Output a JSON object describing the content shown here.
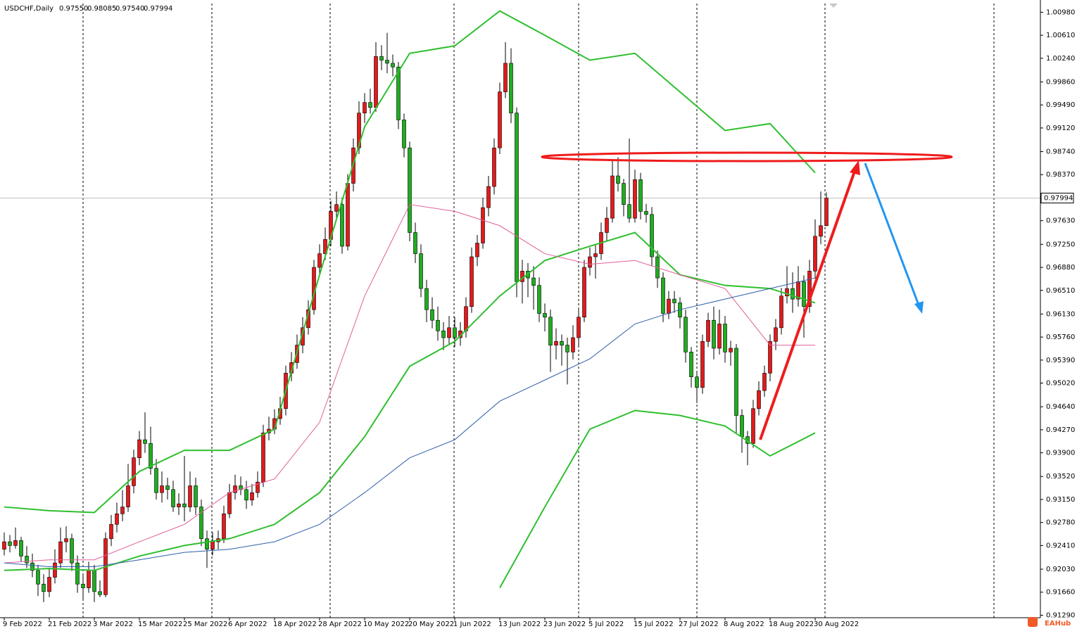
{
  "chart_data": {
    "type": "candlestick",
    "header": {
      "symbol": "USDCHF,Daily",
      "ohlc_text": [
        "0.97550",
        "0.98085",
        "0.97540",
        "0.97994"
      ]
    },
    "watermark": "EAHub",
    "up_color": "#e31a1c",
    "down_color": "#1fae1f",
    "categories": [
      "9 Feb 2022",
      "21 Feb 2022",
      "3 Mar 2022",
      "15 Mar 2022",
      "25 Mar 2022",
      "6 Apr 2022",
      "18 Apr 2022",
      "28 Apr 2022",
      "10 May 2022",
      "20 May 2022",
      "1 Jun 2022",
      "13 Jun 2022",
      "23 Jun 2022",
      "5 Jul 2022",
      "15 Jul 2022",
      "27 Jul 2022",
      "8 Aug 2022",
      "18 Aug 2022",
      "30 Aug 2022"
    ],
    "candles_per_category": 8,
    "ylim": [
      0.9125,
      1.0112
    ],
    "yticks": [
      {
        "value": 1.0098,
        "label": "1.00980"
      },
      {
        "value": 1.0061,
        "label": "1.00610"
      },
      {
        "value": 1.0024,
        "label": "1.00240"
      },
      {
        "value": 0.9986,
        "label": "0.99860"
      },
      {
        "value": 0.9949,
        "label": "0.99490"
      },
      {
        "value": 0.9912,
        "label": "0.99120"
      },
      {
        "value": 0.9874,
        "label": "0.98740"
      },
      {
        "value": 0.9837,
        "label": "0.98370"
      },
      {
        "value": 0.9763,
        "label": "0.97630"
      },
      {
        "value": 0.9725,
        "label": "0.97250"
      },
      {
        "value": 0.9688,
        "label": "0.96880"
      },
      {
        "value": 0.9651,
        "label": "0.96510"
      },
      {
        "value": 0.9613,
        "label": "0.96130"
      },
      {
        "value": 0.9576,
        "label": "0.95760"
      },
      {
        "value": 0.9539,
        "label": "0.95390"
      },
      {
        "value": 0.9502,
        "label": "0.95020"
      },
      {
        "value": 0.9464,
        "label": "0.94640"
      },
      {
        "value": 0.9427,
        "label": "0.94270"
      },
      {
        "value": 0.939,
        "label": "0.93900"
      },
      {
        "value": 0.9352,
        "label": "0.93520"
      },
      {
        "value": 0.9315,
        "label": "0.93150"
      },
      {
        "value": 0.9278,
        "label": "0.92780"
      },
      {
        "value": 0.9241,
        "label": "0.92410"
      },
      {
        "value": 0.9203,
        "label": "0.92030"
      },
      {
        "value": 0.9166,
        "label": "0.91660"
      },
      {
        "value": 0.9129,
        "label": "0.91290"
      }
    ],
    "current_price": {
      "value": 0.97994,
      "label": "0.97994"
    },
    "ohlc": [
      [
        0.9235,
        0.9262,
        0.9225,
        0.9247
      ],
      [
        0.9247,
        0.9258,
        0.923,
        0.9241
      ],
      [
        0.9241,
        0.927,
        0.9236,
        0.9249
      ],
      [
        0.9249,
        0.9255,
        0.9215,
        0.9224
      ],
      [
        0.9224,
        0.924,
        0.9205,
        0.9213
      ],
      [
        0.9213,
        0.9228,
        0.919,
        0.9201
      ],
      [
        0.9201,
        0.921,
        0.916,
        0.9179
      ],
      [
        0.9179,
        0.9195,
        0.915,
        0.9167
      ],
      [
        0.9167,
        0.9205,
        0.9158,
        0.919
      ],
      [
        0.919,
        0.9235,
        0.918,
        0.9213
      ],
      [
        0.9213,
        0.927,
        0.9205,
        0.9247
      ],
      [
        0.9247,
        0.9272,
        0.923,
        0.9252
      ],
      [
        0.9252,
        0.926,
        0.92,
        0.9213
      ],
      [
        0.9213,
        0.9225,
        0.9165,
        0.9179
      ],
      [
        0.9179,
        0.9195,
        0.9155,
        0.9173
      ],
      [
        0.9173,
        0.9215,
        0.9165,
        0.9201
      ],
      [
        0.9201,
        0.921,
        0.915,
        0.9167
      ],
      [
        0.9167,
        0.9185,
        0.9158,
        0.9162
      ],
      [
        0.9162,
        0.9262,
        0.9158,
        0.9252
      ],
      [
        0.9252,
        0.929,
        0.924,
        0.9275
      ],
      [
        0.9275,
        0.931,
        0.9262,
        0.9292
      ],
      [
        0.9292,
        0.933,
        0.928,
        0.9303
      ],
      [
        0.9303,
        0.9372,
        0.9295,
        0.9337
      ],
      [
        0.9337,
        0.9395,
        0.9325,
        0.9382
      ],
      [
        0.9382,
        0.9425,
        0.937,
        0.9411
      ],
      [
        0.9411,
        0.9455,
        0.939,
        0.9405
      ],
      [
        0.9405,
        0.9432,
        0.9355,
        0.9365
      ],
      [
        0.9365,
        0.938,
        0.9315,
        0.9326
      ],
      [
        0.9326,
        0.936,
        0.931,
        0.9337
      ],
      [
        0.9337,
        0.935,
        0.9315,
        0.9331
      ],
      [
        0.9331,
        0.9345,
        0.9295,
        0.9303
      ],
      [
        0.9303,
        0.9325,
        0.929,
        0.9308
      ],
      [
        0.9308,
        0.9385,
        0.928,
        0.9303
      ],
      [
        0.9303,
        0.936,
        0.9295,
        0.9337
      ],
      [
        0.9337,
        0.935,
        0.929,
        0.9303
      ],
      [
        0.9303,
        0.9315,
        0.924,
        0.9252
      ],
      [
        0.9252,
        0.9265,
        0.9205,
        0.9235
      ],
      [
        0.9235,
        0.9262,
        0.9225,
        0.9247
      ],
      [
        0.9247,
        0.9265,
        0.9235,
        0.9252
      ],
      [
        0.9252,
        0.9305,
        0.9245,
        0.9292
      ],
      [
        0.9292,
        0.934,
        0.9285,
        0.9326
      ],
      [
        0.9326,
        0.9355,
        0.9315,
        0.9337
      ],
      [
        0.9337,
        0.9352,
        0.9322,
        0.9331
      ],
      [
        0.9331,
        0.9345,
        0.93,
        0.9314
      ],
      [
        0.9314,
        0.934,
        0.9305,
        0.9326
      ],
      [
        0.9326,
        0.936,
        0.9318,
        0.9343
      ],
      [
        0.9343,
        0.9435,
        0.9335,
        0.9422
      ],
      [
        0.9422,
        0.9448,
        0.941,
        0.9428
      ],
      [
        0.9428,
        0.946,
        0.942,
        0.9445
      ],
      [
        0.9445,
        0.948,
        0.9435,
        0.9461
      ],
      [
        0.9461,
        0.953,
        0.945,
        0.9518
      ],
      [
        0.9518,
        0.9552,
        0.9505,
        0.9535
      ],
      [
        0.9535,
        0.958,
        0.9525,
        0.9563
      ],
      [
        0.9563,
        0.9608,
        0.955,
        0.9591
      ],
      [
        0.9591,
        0.9635,
        0.958,
        0.962
      ],
      [
        0.962,
        0.97,
        0.9612,
        0.9688
      ],
      [
        0.9688,
        0.9725,
        0.9678,
        0.971
      ],
      [
        0.971,
        0.9752,
        0.97,
        0.9733
      ],
      [
        0.9733,
        0.9795,
        0.9722,
        0.9778
      ],
      [
        0.9778,
        0.981,
        0.9765,
        0.9789
      ],
      [
        0.9789,
        0.98,
        0.971,
        0.9722
      ],
      [
        0.9722,
        0.9838,
        0.9715,
        0.9823
      ],
      [
        0.9823,
        0.9895,
        0.981,
        0.988
      ],
      [
        0.988,
        0.9955,
        0.987,
        0.9936
      ],
      [
        0.9936,
        0.9968,
        0.992,
        0.9953
      ],
      [
        0.9953,
        0.9975,
        0.9935,
        0.9945
      ],
      [
        0.9945,
        1.005,
        0.9938,
        1.0027
      ],
      [
        1.0027,
        1.0045,
        1.0005,
        1.0021
      ],
      [
        1.0021,
        1.0065,
        1.0,
        1.0016
      ],
      [
        1.0016,
        1.003,
        0.9995,
        1.001
      ],
      [
        1.001,
        1.0018,
        0.991,
        0.9925
      ],
      [
        0.9925,
        0.9935,
        0.9865,
        0.988
      ],
      [
        0.988,
        0.989,
        0.973,
        0.9744
      ],
      [
        0.9744,
        0.976,
        0.9695,
        0.971
      ],
      [
        0.971,
        0.9725,
        0.964,
        0.9654
      ],
      [
        0.9654,
        0.9668,
        0.96,
        0.962
      ],
      [
        0.962,
        0.964,
        0.959,
        0.9603
      ],
      [
        0.9603,
        0.9625,
        0.957,
        0.9586
      ],
      [
        0.9586,
        0.96,
        0.9555,
        0.9575
      ],
      [
        0.9575,
        0.961,
        0.9565,
        0.9591
      ],
      [
        0.9591,
        0.9608,
        0.956,
        0.9575
      ],
      [
        0.9575,
        0.96,
        0.9562,
        0.9586
      ],
      [
        0.9586,
        0.964,
        0.9575,
        0.9625
      ],
      [
        0.9625,
        0.972,
        0.9615,
        0.9705
      ],
      [
        0.9705,
        0.974,
        0.969,
        0.9727
      ],
      [
        0.9727,
        0.98,
        0.9718,
        0.9784
      ],
      [
        0.9784,
        0.9835,
        0.977,
        0.9818
      ],
      [
        0.9818,
        0.9895,
        0.9805,
        0.988
      ],
      [
        0.988,
        0.9985,
        0.987,
        0.997
      ],
      [
        0.997,
        1.005,
        0.996,
        1.0016
      ],
      [
        1.0016,
        1.004,
        0.992,
        0.9936
      ],
      [
        0.9936,
        0.9945,
        0.964,
        0.9665
      ],
      [
        0.9665,
        0.97,
        0.963,
        0.9682
      ],
      [
        0.9682,
        0.9695,
        0.964,
        0.9671
      ],
      [
        0.9671,
        0.969,
        0.962,
        0.9659
      ],
      [
        0.9659,
        0.9672,
        0.96,
        0.9614
      ],
      [
        0.9614,
        0.963,
        0.9585,
        0.9608
      ],
      [
        0.9608,
        0.962,
        0.952,
        0.9563
      ],
      [
        0.9563,
        0.959,
        0.954,
        0.9569
      ],
      [
        0.9569,
        0.958,
        0.953,
        0.9563
      ],
      [
        0.9563,
        0.9575,
        0.95,
        0.9552
      ],
      [
        0.9552,
        0.9595,
        0.954,
        0.9575
      ],
      [
        0.9575,
        0.962,
        0.9562,
        0.9608
      ],
      [
        0.9608,
        0.97,
        0.96,
        0.9688
      ],
      [
        0.9688,
        0.972,
        0.9675,
        0.9705
      ],
      [
        0.9705,
        0.9725,
        0.967,
        0.971
      ],
      [
        0.971,
        0.976,
        0.97,
        0.9744
      ],
      [
        0.9744,
        0.9785,
        0.973,
        0.9767
      ],
      [
        0.9767,
        0.986,
        0.976,
        0.9835
      ],
      [
        0.9835,
        0.9865,
        0.981,
        0.9823
      ],
      [
        0.9823,
        0.983,
        0.977,
        0.9789
      ],
      [
        0.9789,
        0.9895,
        0.976,
        0.9767
      ],
      [
        0.9767,
        0.9845,
        0.976,
        0.9829
      ],
      [
        0.9829,
        0.984,
        0.9765,
        0.9778
      ],
      [
        0.9778,
        0.979,
        0.976,
        0.9773
      ],
      [
        0.9773,
        0.9785,
        0.969,
        0.9705
      ],
      [
        0.9705,
        0.9715,
        0.9655,
        0.9671
      ],
      [
        0.9671,
        0.968,
        0.96,
        0.9614
      ],
      [
        0.9614,
        0.965,
        0.9605,
        0.9637
      ],
      [
        0.9637,
        0.965,
        0.9615,
        0.9631
      ],
      [
        0.9631,
        0.964,
        0.959,
        0.9608
      ],
      [
        0.9608,
        0.962,
        0.9535,
        0.9552
      ],
      [
        0.9552,
        0.956,
        0.9495,
        0.9512
      ],
      [
        0.9512,
        0.952,
        0.947,
        0.9495
      ],
      [
        0.9495,
        0.958,
        0.9485,
        0.9569
      ],
      [
        0.9569,
        0.9615,
        0.956,
        0.9603
      ],
      [
        0.9603,
        0.9625,
        0.954,
        0.9558
      ],
      [
        0.9558,
        0.962,
        0.9548,
        0.9597
      ],
      [
        0.9597,
        0.961,
        0.9535,
        0.9552
      ],
      [
        0.9552,
        0.957,
        0.953,
        0.9558
      ],
      [
        0.9558,
        0.9565,
        0.942,
        0.945
      ],
      [
        0.945,
        0.946,
        0.939,
        0.9416
      ],
      [
        0.9416,
        0.9425,
        0.937,
        0.9405
      ],
      [
        0.9405,
        0.9475,
        0.9398,
        0.9461
      ],
      [
        0.9461,
        0.9505,
        0.945,
        0.949
      ],
      [
        0.949,
        0.953,
        0.948,
        0.9518
      ],
      [
        0.9518,
        0.958,
        0.9505,
        0.9569
      ],
      [
        0.9569,
        0.9605,
        0.9555,
        0.9591
      ],
      [
        0.9591,
        0.9655,
        0.958,
        0.9642
      ],
      [
        0.9642,
        0.969,
        0.963,
        0.9654
      ],
      [
        0.9654,
        0.968,
        0.9615,
        0.9637
      ],
      [
        0.9637,
        0.969,
        0.9625,
        0.9665
      ],
      [
        0.9665,
        0.9675,
        0.9575,
        0.9625
      ],
      [
        0.9625,
        0.97,
        0.9615,
        0.9682
      ],
      [
        0.9682,
        0.9765,
        0.967,
        0.9738
      ],
      [
        0.9738,
        0.981,
        0.9725,
        0.9755
      ],
      [
        0.9755,
        0.98085,
        0.9754,
        0.97994
      ]
    ],
    "series": [
      {
        "color": "#2fbf2f",
        "values": [
          0.9303,
          0.9297,
          0.9294,
          0.936,
          0.9394,
          0.9394,
          0.9428,
          0.9676,
          0.9914,
          1.0032,
          1.0044,
          1.01,
          1.0061,
          1.0021,
          1.0032,
          0.997,
          0.9908,
          0.9919,
          0.984
        ]
      },
      {
        "color": "#2fbf2f",
        "values": [
          0.9201,
          0.9204,
          0.9201,
          0.9224,
          0.9241,
          0.9252,
          0.9275,
          0.9326,
          0.9416,
          0.9529,
          0.9569,
          0.9642,
          0.9699,
          0.9722,
          0.9744,
          0.9676,
          0.9659,
          0.9654,
          0.9631
        ]
      },
      {
        "color": "#2fbf2f",
        "values": [
          null,
          null,
          null,
          null,
          null,
          null,
          null,
          null,
          null,
          null,
          null,
          0.9173,
          0.9303,
          0.9428,
          0.9458,
          0.945,
          0.9433,
          0.9385,
          0.9422
        ]
      },
      {
        "color": "#e0609a",
        "values": [
          0.9213,
          0.9218,
          0.9218,
          0.9247,
          0.9275,
          0.9326,
          0.9348,
          0.9439,
          0.9642,
          0.9789,
          0.9778,
          0.9755,
          0.971,
          0.9693,
          0.9699,
          0.9676,
          0.9654,
          0.9563,
          0.9563
        ]
      },
      {
        "color": "#2d5fa8",
        "values": [
          0.9213,
          0.9207,
          0.9207,
          0.9218,
          0.923,
          0.9235,
          0.9247,
          0.9275,
          0.9326,
          0.9382,
          0.9411,
          0.9473,
          0.9507,
          0.9541,
          0.9597,
          0.962,
          0.9637,
          0.9654,
          0.9671
        ]
      }
    ]
  }
}
